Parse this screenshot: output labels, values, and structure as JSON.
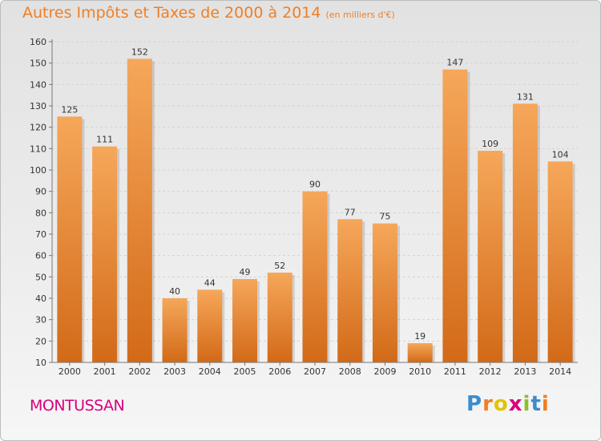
{
  "title": "Autres Impôts et Taxes de 2000 à 2014",
  "subtitle": "(en milliers d'€)",
  "commune": "MONTUSSAN",
  "logo": {
    "letters": [
      "P",
      "r",
      "o",
      "x",
      "i",
      "t",
      "i"
    ],
    "colors": [
      "#3a8ccf",
      "#ef7f25",
      "#e3c400",
      "#d7007f",
      "#8bbf2a",
      "#3a8ccf",
      "#ef7f25"
    ]
  },
  "colors": {
    "bar_light": "#f6a75a",
    "bar_dark": "#d26a18",
    "title": "#ef7f25",
    "commune": "#d7007f"
  },
  "chart_data": {
    "type": "bar",
    "title": "Autres Impôts et Taxes de 2000 à 2014",
    "categories": [
      "2000",
      "2001",
      "2002",
      "2003",
      "2004",
      "2005",
      "2006",
      "2007",
      "2008",
      "2009",
      "2010",
      "2011",
      "2012",
      "2013",
      "2014"
    ],
    "values": [
      125,
      111,
      152,
      40,
      44,
      49,
      52,
      90,
      77,
      75,
      19,
      147,
      109,
      131,
      104
    ],
    "data_labels": [
      "125",
      "111",
      "152",
      "40",
      "44",
      "49",
      "52",
      "90",
      "77",
      "75",
      "19",
      "147",
      "109",
      "131",
      "104"
    ],
    "ylim": [
      10,
      160
    ],
    "yticks": [
      10,
      20,
      30,
      40,
      50,
      60,
      70,
      80,
      90,
      100,
      110,
      120,
      130,
      140,
      150,
      160
    ],
    "grid": true
  }
}
